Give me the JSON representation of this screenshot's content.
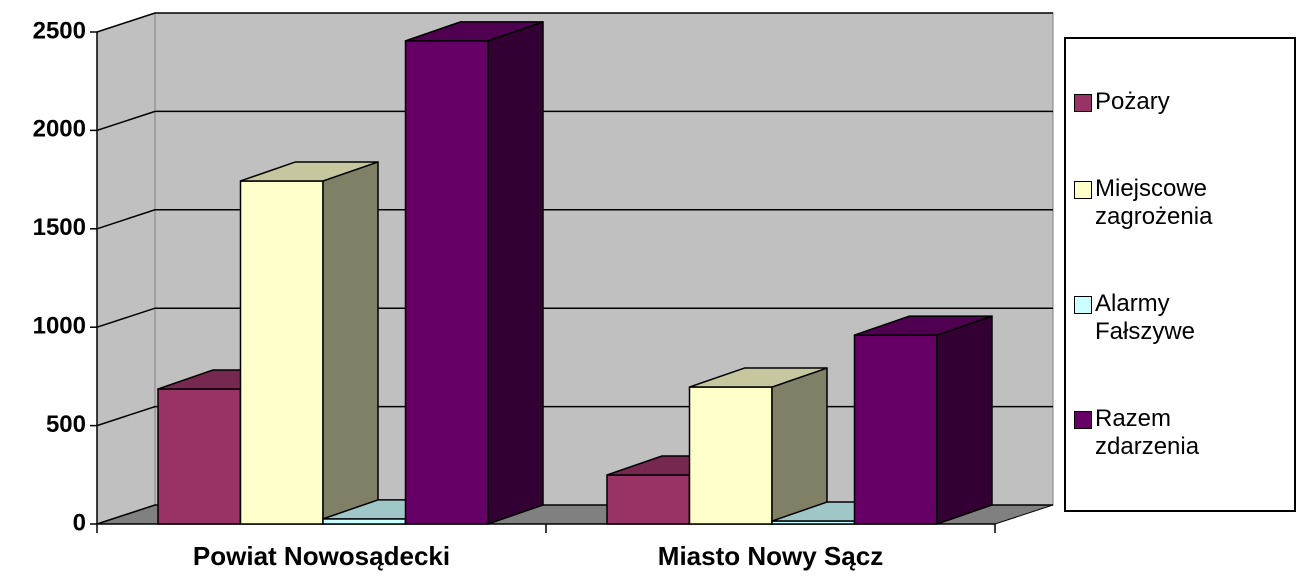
{
  "chart_data": {
    "type": "bar3d",
    "categories": [
      "Powiat Nowosądecki",
      "Miasto Nowy Sącz"
    ],
    "series": [
      {
        "name": "Pożary",
        "color": "#993366",
        "values": [
          686,
          249
        ]
      },
      {
        "name": "Miejscowe zagrożenia",
        "color": "#ffffcc",
        "values": [
          1743,
          696
        ]
      },
      {
        "name": "Alarmy Fałszywe",
        "color": "#ccffff",
        "values": [
          26,
          15
        ]
      },
      {
        "name": "Razem zdarzenia",
        "color": "#660066",
        "values": [
          2455,
          960
        ]
      }
    ],
    "ylim": [
      0,
      2500
    ],
    "yticks": [
      0,
      500,
      1000,
      1500,
      2000,
      2500
    ],
    "grid": true,
    "legend": "right"
  }
}
